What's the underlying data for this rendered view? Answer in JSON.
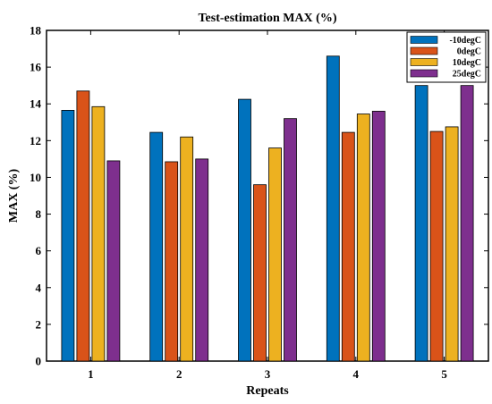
{
  "chart_data": {
    "type": "bar",
    "title": "Test-estimation MAX (%)",
    "xlabel": "Repeats",
    "ylabel": "MAX (%)",
    "categories": [
      "1",
      "2",
      "3",
      "4",
      "5"
    ],
    "ylim": [
      0,
      18
    ],
    "yticks": [
      0,
      2,
      4,
      6,
      8,
      10,
      12,
      14,
      16,
      18
    ],
    "grid": false,
    "legend_position": "top-right",
    "series": [
      {
        "name": "-10degC",
        "color": "#0072BD",
        "values": [
          13.65,
          12.45,
          14.25,
          16.6,
          15.0
        ]
      },
      {
        "name": "0degC",
        "color": "#D95319",
        "values": [
          14.7,
          10.85,
          9.6,
          12.45,
          12.5
        ]
      },
      {
        "name": "10degC",
        "color": "#EDB120",
        "values": [
          13.85,
          12.2,
          11.6,
          13.45,
          12.75
        ]
      },
      {
        "name": "25degC",
        "color": "#7E2F8E",
        "values": [
          10.9,
          11.0,
          13.2,
          13.6,
          15.0
        ]
      }
    ]
  }
}
